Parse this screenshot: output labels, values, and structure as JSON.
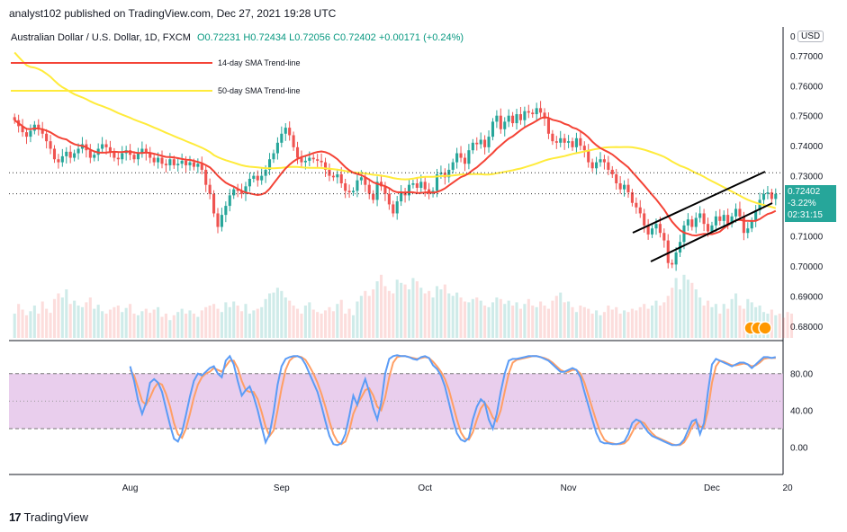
{
  "publisher_line": "analyst102 published on TradingView.com, Dec 27, 2021 19:28 UTC",
  "header": {
    "pair": "Australian Dollar / U.S. Dollar, 1D, FXCM",
    "open": "O0.72231",
    "high": "H0.72434",
    "low": "L0.72056",
    "close": "C0.72402",
    "change": "+0.00171 (+0.24%)"
  },
  "currency_button": "USD",
  "currency_prefix": "0",
  "price_label": {
    "price": "0.72402",
    "change_pct": "-3.22%",
    "countdown": "02:31:15"
  },
  "footer_brand": "TradingView",
  "colors": {
    "up": "#26a69a",
    "down": "#ef5350",
    "sma14": "#f44336",
    "sma50": "#ffeb3b",
    "k_line": "#5b9cf6",
    "d_line": "#ff9f65",
    "osc_band": "#e1bee7"
  },
  "chart_data": [
    {
      "type": "candlestick",
      "title": "",
      "legend": [
        {
          "name": "14-day SMA Trend-line",
          "color": "#f44336"
        },
        {
          "name": "50-day SMA Trend-line",
          "color": "#ffeb3b"
        }
      ],
      "x_ticks": [
        "Aug",
        "Sep",
        "Oct",
        "Nov",
        "Dec",
        "20"
      ],
      "x_ticks_index": [
        29,
        67,
        103,
        139,
        175,
        194
      ],
      "y_ticks": [
        "0.77000",
        "0.76000",
        "0.75000",
        "0.74000",
        "0.73000",
        "0.72000",
        "0.71000",
        "0.70000",
        "0.69000",
        "0.68000"
      ],
      "ylim": [
        0.6755,
        0.7795
      ],
      "closes": [
        0.7485,
        0.7465,
        0.7445,
        0.743,
        0.745,
        0.747,
        0.7455,
        0.744,
        0.7415,
        0.739,
        0.7355,
        0.7345,
        0.7365,
        0.738,
        0.736,
        0.7375,
        0.739,
        0.7405,
        0.7385,
        0.736,
        0.737,
        0.739,
        0.7405,
        0.7395,
        0.738,
        0.736,
        0.7355,
        0.7375,
        0.7385,
        0.737,
        0.7355,
        0.7375,
        0.739,
        0.7375,
        0.736,
        0.7345,
        0.736,
        0.734,
        0.7335,
        0.7355,
        0.7335,
        0.734,
        0.735,
        0.7335,
        0.7345,
        0.733,
        0.734,
        0.732,
        0.727,
        0.724,
        0.7175,
        0.713,
        0.717,
        0.72,
        0.7235,
        0.7255,
        0.725,
        0.724,
        0.7265,
        0.729,
        0.73,
        0.7285,
        0.73,
        0.732,
        0.7355,
        0.7375,
        0.741,
        0.744,
        0.746,
        0.7435,
        0.7395,
        0.736,
        0.7345,
        0.735,
        0.736,
        0.7355,
        0.735,
        0.7345,
        0.732,
        0.73,
        0.7295,
        0.7305,
        0.7275,
        0.725,
        0.7245,
        0.725,
        0.7285,
        0.7295,
        0.727,
        0.724,
        0.722,
        0.728,
        0.7265,
        0.724,
        0.7205,
        0.7175,
        0.7215,
        0.7245,
        0.7235,
        0.727,
        0.7275,
        0.726,
        0.728,
        0.7255,
        0.724,
        0.725,
        0.7305,
        0.731,
        0.7295,
        0.732,
        0.7345,
        0.7375,
        0.736,
        0.734,
        0.7385,
        0.741,
        0.7405,
        0.742,
        0.7395,
        0.743,
        0.748,
        0.75,
        0.7455,
        0.748,
        0.75,
        0.7475,
        0.7505,
        0.7485,
        0.7515,
        0.751,
        0.7505,
        0.7525,
        0.751,
        0.749,
        0.744,
        0.7415,
        0.741,
        0.7425,
        0.741,
        0.7415,
        0.7395,
        0.7425,
        0.74,
        0.7385,
        0.7345,
        0.7325,
        0.7345,
        0.7355,
        0.7345,
        0.732,
        0.7305,
        0.7275,
        0.7255,
        0.727,
        0.7245,
        0.721,
        0.7195,
        0.7175,
        0.7135,
        0.7105,
        0.7125,
        0.714,
        0.711,
        0.7085,
        0.701,
        0.7005,
        0.7045,
        0.708,
        0.7135,
        0.7155,
        0.713,
        0.716,
        0.7175,
        0.714,
        0.7115,
        0.7135,
        0.7165,
        0.715,
        0.717,
        0.714,
        0.7165,
        0.719,
        0.7165,
        0.711,
        0.7125,
        0.715,
        0.7185,
        0.722,
        0.724,
        0.7245,
        0.7223,
        0.724
      ],
      "volume_relative": [
        0.3,
        0.42,
        0.35,
        0.28,
        0.33,
        0.4,
        0.3,
        0.45,
        0.36,
        0.31,
        0.48,
        0.55,
        0.5,
        0.6,
        0.42,
        0.46,
        0.4,
        0.38,
        0.44,
        0.5,
        0.36,
        0.41,
        0.33,
        0.3,
        0.35,
        0.38,
        0.4,
        0.32,
        0.37,
        0.42,
        0.3,
        0.28,
        0.33,
        0.36,
        0.31,
        0.35,
        0.38,
        0.26,
        0.3,
        0.22,
        0.28,
        0.32,
        0.36,
        0.3,
        0.34,
        0.3,
        0.26,
        0.34,
        0.38,
        0.4,
        0.42,
        0.36,
        0.32,
        0.44,
        0.38,
        0.45,
        0.4,
        0.33,
        0.42,
        0.3,
        0.34,
        0.36,
        0.38,
        0.48,
        0.55,
        0.56,
        0.62,
        0.58,
        0.5,
        0.46,
        0.4,
        0.36,
        0.3,
        0.4,
        0.44,
        0.35,
        0.32,
        0.3,
        0.34,
        0.38,
        0.33,
        0.42,
        0.47,
        0.3,
        0.36,
        0.28,
        0.45,
        0.52,
        0.58,
        0.52,
        0.6,
        0.7,
        0.78,
        0.64,
        0.58,
        0.55,
        0.72,
        0.68,
        0.66,
        0.6,
        0.74,
        0.7,
        0.62,
        0.55,
        0.58,
        0.5,
        0.64,
        0.6,
        0.66,
        0.55,
        0.52,
        0.56,
        0.5,
        0.45,
        0.44,
        0.48,
        0.5,
        0.46,
        0.4,
        0.38,
        0.44,
        0.5,
        0.48,
        0.42,
        0.46,
        0.4,
        0.44,
        0.36,
        0.42,
        0.48,
        0.4,
        0.38,
        0.45,
        0.4,
        0.36,
        0.46,
        0.52,
        0.56,
        0.44,
        0.45,
        0.38,
        0.32,
        0.4,
        0.38,
        0.36,
        0.3,
        0.34,
        0.28,
        0.32,
        0.4,
        0.35,
        0.38,
        0.3,
        0.34,
        0.32,
        0.36,
        0.34,
        0.38,
        0.42,
        0.36,
        0.4,
        0.46,
        0.4,
        0.44,
        0.52,
        0.62,
        0.74,
        0.6,
        0.78,
        0.72,
        0.68,
        0.6,
        0.5,
        0.4,
        0.46,
        0.38,
        0.42,
        0.3,
        0.42,
        0.36,
        0.48,
        0.55,
        0.4,
        0.36,
        0.48,
        0.44,
        0.38,
        0.4,
        0.32,
        0.3,
        0.35,
        0.28,
        0.3,
        0.25,
        0.32,
        0.3
      ],
      "annotations": [
        "14-day SMA Trend-line",
        "50-day SMA Trend-line",
        "ascending channel"
      ]
    },
    {
      "type": "line",
      "title": "",
      "y_ticks": [
        "80.00",
        "40.00",
        "0.00"
      ],
      "ylim": [
        -30,
        115
      ],
      "band": [
        20,
        80
      ],
      "series": [
        {
          "values": [
            88,
            72,
            50,
            36,
            48,
            70,
            74,
            70,
            60,
            42,
            24,
            9,
            6,
            16,
            35,
            55,
            72,
            80,
            78,
            82,
            86,
            88,
            80,
            76,
            94,
            99,
            90,
            72,
            56,
            62,
            66,
            55,
            40,
            22,
            5,
            14,
            38,
            68,
            88,
            96,
            98,
            99,
            99,
            97,
            90,
            80,
            70,
            60,
            45,
            28,
            12,
            3,
            2,
            4,
            14,
            34,
            56,
            46,
            62,
            74,
            60,
            42,
            30,
            48,
            80,
            96,
            99,
            100,
            99,
            99,
            98,
            96,
            95,
            98,
            99,
            97,
            89,
            85,
            78,
            66,
            48,
            30,
            15,
            8,
            6,
            10,
            30,
            44,
            52,
            48,
            30,
            20,
            36,
            60,
            80,
            94,
            96,
            96,
            97,
            98,
            99,
            99,
            99,
            98,
            96,
            94,
            90,
            86,
            82,
            82,
            84,
            86,
            84,
            76,
            60,
            45,
            30,
            15,
            6,
            4,
            4,
            3,
            3,
            4,
            6,
            14,
            26,
            30,
            28,
            22,
            16,
            12,
            10,
            8,
            6,
            4,
            2,
            2,
            3,
            8,
            18,
            28,
            30,
            14,
            26,
            60,
            90,
            96,
            94,
            92,
            90,
            88,
            90,
            92,
            92,
            90,
            86,
            90,
            94,
            98,
            98,
            97,
            98
          ],
          "name": ""
        },
        {
          "values": [
            84,
            78,
            64,
            50,
            46,
            54,
            64,
            70,
            68,
            58,
            44,
            26,
            14,
            10,
            20,
            36,
            54,
            68,
            76,
            80,
            82,
            86,
            84,
            82,
            88,
            94,
            94,
            86,
            72,
            62,
            60,
            60,
            52,
            38,
            22,
            12,
            18,
            40,
            64,
            84,
            94,
            98,
            99,
            98,
            95,
            88,
            80,
            70,
            58,
            44,
            28,
            14,
            6,
            3,
            6,
            18,
            36,
            46,
            54,
            62,
            64,
            56,
            44,
            40,
            54,
            76,
            92,
            98,
            99,
            99,
            98,
            97,
            96,
            97,
            98,
            97,
            93,
            88,
            82,
            74,
            62,
            46,
            30,
            16,
            9,
            8,
            16,
            30,
            42,
            48,
            42,
            32,
            28,
            40,
            60,
            80,
            92,
            95,
            96,
            97,
            98,
            99,
            99,
            98,
            97,
            95,
            92,
            88,
            84,
            82,
            82,
            84,
            84,
            80,
            70,
            56,
            42,
            28,
            16,
            8,
            5,
            4,
            3,
            3,
            4,
            8,
            16,
            24,
            28,
            26,
            20,
            15,
            11,
            9,
            7,
            5,
            3,
            2,
            2,
            5,
            12,
            22,
            28,
            22,
            22,
            40,
            70,
            88,
            94,
            93,
            91,
            89,
            89,
            90,
            91,
            90,
            88,
            89,
            92,
            96,
            97,
            97,
            97
          ],
          "name": ""
        }
      ],
      "x_ticks": [
        "Aug",
        "Sep",
        "Oct",
        "Nov",
        "Dec",
        "20"
      ]
    }
  ]
}
